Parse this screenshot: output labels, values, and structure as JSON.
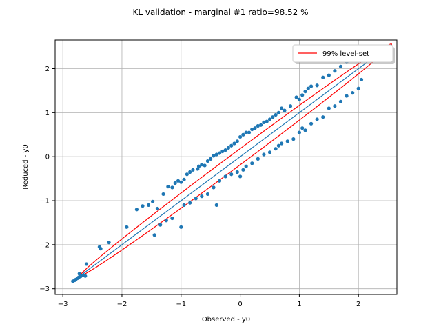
{
  "chart_data": {
    "type": "scatter",
    "title": "KL validation - marginal #1 ratio=98.52 %",
    "xlabel": "Observed - y0",
    "ylabel": "Reduced - y0",
    "xlim": [
      -3.13,
      2.65
    ],
    "ylim": [
      -3.13,
      2.65
    ],
    "x_ticks": [
      -3,
      -2,
      -1,
      0,
      1,
      2
    ],
    "y_ticks": [
      -3,
      -2,
      -1,
      0,
      1,
      2
    ],
    "tick_labels": [
      "−3",
      "−2",
      "−1",
      "0",
      "1",
      "2"
    ],
    "grid": true,
    "legend": {
      "placement": "top-right",
      "entries": [
        "99% level-set"
      ]
    },
    "colors": {
      "points": "#1f77b4",
      "identity_line": "#1f77b4",
      "level_set": "#ff0000",
      "grid": "#b0b0b0"
    },
    "identity_line": {
      "x": [
        -2.72,
        2.55
      ],
      "y": [
        -2.72,
        2.55
      ]
    },
    "level_set": {
      "name": "99% level-set",
      "center": [
        -0.07,
        -0.07
      ],
      "major_half_length": 3.72,
      "minor_half_length": 0.13,
      "angle_deg": 45
    },
    "points": [
      [
        -2.83,
        -2.83
      ],
      [
        -2.8,
        -2.81
      ],
      [
        -2.78,
        -2.79
      ],
      [
        -2.75,
        -2.76
      ],
      [
        -2.73,
        -2.74
      ],
      [
        -2.7,
        -2.72
      ],
      [
        -2.68,
        -2.7
      ],
      [
        -2.65,
        -2.69
      ],
      [
        -2.62,
        -2.71
      ],
      [
        -2.72,
        -2.66
      ],
      [
        -2.6,
        -2.44
      ],
      [
        -2.38,
        -2.05
      ],
      [
        -2.36,
        -2.09
      ],
      [
        -2.22,
        -1.95
      ],
      [
        -1.92,
        -1.6
      ],
      [
        -1.75,
        -1.2
      ],
      [
        -1.65,
        -1.12
      ],
      [
        -1.55,
        -1.1
      ],
      [
        -1.48,
        -1.02
      ],
      [
        -1.4,
        -1.18
      ],
      [
        -1.3,
        -0.85
      ],
      [
        -1.22,
        -0.68
      ],
      [
        -1.15,
        -0.7
      ],
      [
        -1.1,
        -0.6
      ],
      [
        -1.05,
        -0.55
      ],
      [
        -1.0,
        -0.58
      ],
      [
        -0.95,
        -0.52
      ],
      [
        -0.9,
        -0.4
      ],
      [
        -0.85,
        -0.35
      ],
      [
        -0.8,
        -0.3
      ],
      [
        -0.72,
        -0.28
      ],
      [
        -0.7,
        -0.22
      ],
      [
        -0.65,
        -0.18
      ],
      [
        -0.6,
        -0.2
      ],
      [
        -0.55,
        -0.1
      ],
      [
        -0.5,
        -0.05
      ],
      [
        -0.45,
        0.02
      ],
      [
        -0.4,
        0.05
      ],
      [
        -0.35,
        0.08
      ],
      [
        -0.3,
        0.12
      ],
      [
        -0.25,
        0.15
      ],
      [
        -0.2,
        0.2
      ],
      [
        -0.15,
        0.25
      ],
      [
        -0.1,
        0.3
      ],
      [
        -0.05,
        0.35
      ],
      [
        0.0,
        0.45
      ],
      [
        0.05,
        0.5
      ],
      [
        0.1,
        0.55
      ],
      [
        0.15,
        0.55
      ],
      [
        0.2,
        0.62
      ],
      [
        0.25,
        0.65
      ],
      [
        0.3,
        0.7
      ],
      [
        0.35,
        0.72
      ],
      [
        0.4,
        0.78
      ],
      [
        0.45,
        0.8
      ],
      [
        0.5,
        0.85
      ],
      [
        0.55,
        0.9
      ],
      [
        0.6,
        0.95
      ],
      [
        0.65,
        1.0
      ],
      [
        0.7,
        1.1
      ],
      [
        0.75,
        1.05
      ],
      [
        0.85,
        1.15
      ],
      [
        0.95,
        1.35
      ],
      [
        1.0,
        1.3
      ],
      [
        1.05,
        1.4
      ],
      [
        1.1,
        1.48
      ],
      [
        1.15,
        1.55
      ],
      [
        1.2,
        1.6
      ],
      [
        1.3,
        1.62
      ],
      [
        1.4,
        1.8
      ],
      [
        1.5,
        1.85
      ],
      [
        1.6,
        1.95
      ],
      [
        1.7,
        2.05
      ],
      [
        1.8,
        2.15
      ],
      [
        1.9,
        2.22
      ],
      [
        2.0,
        2.28
      ],
      [
        -1.45,
        -1.78
      ],
      [
        -1.35,
        -1.55
      ],
      [
        -1.25,
        -1.45
      ],
      [
        -1.15,
        -1.4
      ],
      [
        -1.0,
        -1.6
      ],
      [
        -0.95,
        -1.1
      ],
      [
        -0.85,
        -1.05
      ],
      [
        -0.75,
        -0.95
      ],
      [
        -0.65,
        -0.9
      ],
      [
        -0.55,
        -0.85
      ],
      [
        -0.45,
        -0.7
      ],
      [
        -0.4,
        -1.1
      ],
      [
        -0.35,
        -0.55
      ],
      [
        -0.25,
        -0.45
      ],
      [
        -0.15,
        -0.4
      ],
      [
        -0.05,
        -0.35
      ],
      [
        0.0,
        -0.45
      ],
      [
        0.05,
        -0.3
      ],
      [
        0.1,
        -0.22
      ],
      [
        0.2,
        -0.15
      ],
      [
        0.3,
        -0.05
      ],
      [
        0.4,
        0.05
      ],
      [
        0.5,
        0.1
      ],
      [
        0.6,
        0.18
      ],
      [
        0.65,
        0.25
      ],
      [
        0.7,
        0.3
      ],
      [
        0.8,
        0.35
      ],
      [
        0.9,
        0.4
      ],
      [
        1.0,
        0.55
      ],
      [
        1.05,
        0.65
      ],
      [
        1.1,
        0.6
      ],
      [
        1.2,
        0.75
      ],
      [
        1.3,
        0.85
      ],
      [
        1.4,
        0.9
      ],
      [
        1.5,
        1.1
      ],
      [
        1.6,
        1.15
      ],
      [
        1.7,
        1.25
      ],
      [
        1.8,
        1.38
      ],
      [
        1.9,
        1.45
      ],
      [
        2.0,
        1.55
      ],
      [
        2.05,
        1.75
      ]
    ]
  }
}
